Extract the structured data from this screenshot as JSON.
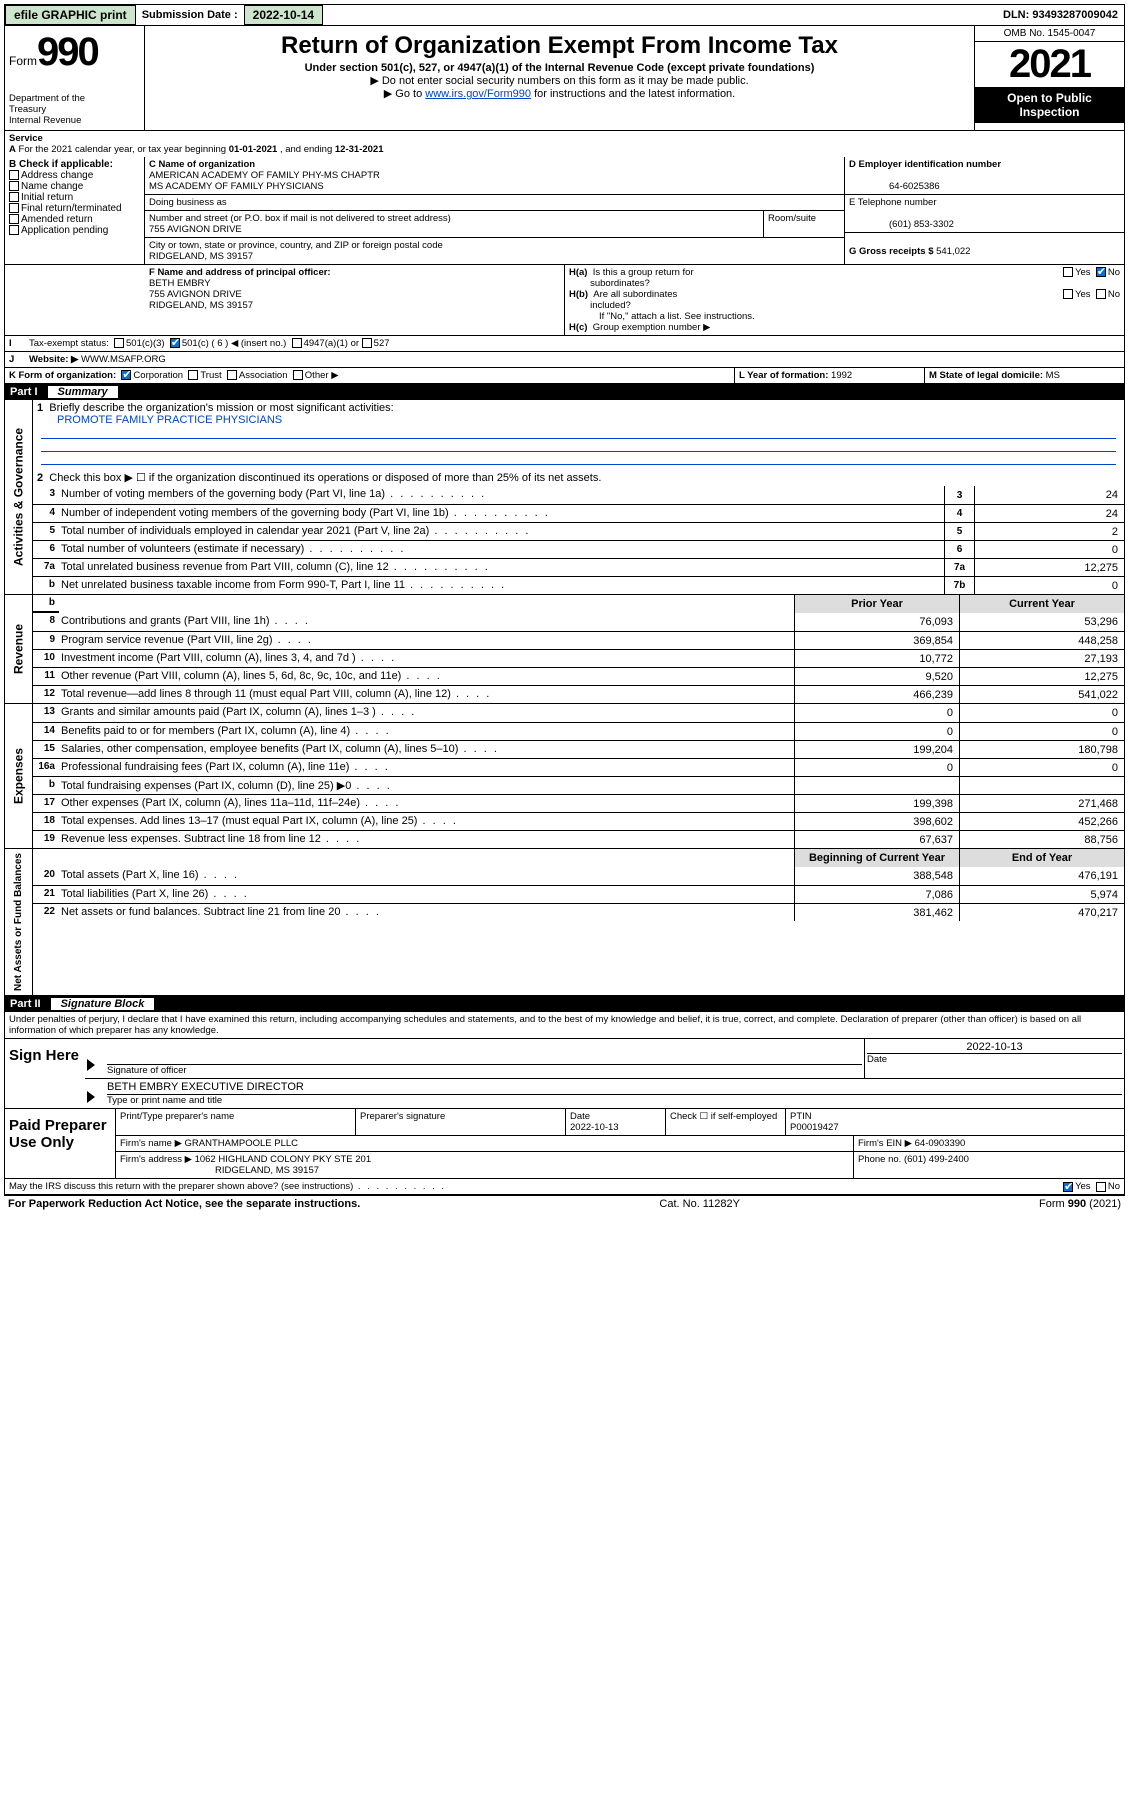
{
  "topbar": {
    "efile": "efile GRAPHIC print",
    "submission_label": "Submission Date :",
    "submission_date": "2022-10-14",
    "dln_label": "DLN:",
    "dln": "93493287009042"
  },
  "header": {
    "form_word": "Form",
    "form_num": "990",
    "title": "Return of Organization Exempt From Income Tax",
    "subtitle": "Under section 501(c), 527, or 4947(a)(1) of the Internal Revenue Code (except private foundations)",
    "line1": "▶ Do not enter social security numbers on this form as it may be made public.",
    "line2_pre": "▶ Go to ",
    "line2_link": "www.irs.gov/Form990",
    "line2_post": " for instructions and the latest information.",
    "dept": "Department of the Treasury\nInternal Revenue Service",
    "omb": "OMB No. 1545-0047",
    "year": "2021",
    "openpub": "Open to Public Inspection"
  },
  "a_line": {
    "prefix": "A",
    "text": "For the 2021 calendar year, or tax year beginning ",
    "begin": "01-01-2021",
    "mid": " , and ending ",
    "end": "12-31-2021"
  },
  "b": {
    "label": "B Check if applicable:",
    "items": [
      "Address change",
      "Name change",
      "Initial return",
      "Final return/terminated",
      "Amended return",
      "Application pending"
    ]
  },
  "c": {
    "name_label": "C Name of organization",
    "name1": "AMERICAN ACADEMY OF FAMILY PHY-MS CHAPTR",
    "name2": "MS ACADEMY OF FAMILY PHYSICIANS",
    "dba": "Doing business as",
    "street_label": "Number and street (or P.O. box if mail is not delivered to street address)",
    "room_label": "Room/suite",
    "street": "755 AVIGNON DRIVE",
    "city_label": "City or town, state or province, country, and ZIP or foreign postal code",
    "city": "RIDGELAND, MS  39157"
  },
  "d": {
    "label": "D Employer identification number",
    "value": "64-6025386"
  },
  "e": {
    "label": "E Telephone number",
    "value": "(601) 853-3302"
  },
  "g": {
    "label": "G Gross receipts $",
    "value": "541,022"
  },
  "f": {
    "label": "F Name and address of principal officer:",
    "name": "BETH EMBRY",
    "street": "755 AVIGNON DRIVE",
    "city": "RIDGELAND, MS  39157"
  },
  "h": {
    "a": "H(a)  Is this a group return for subordinates?",
    "b": "H(b)  Are all subordinates included?",
    "b_note": "If \"No,\" attach a list. See instructions.",
    "c": "H(c)  Group exemption number ▶",
    "yes": "Yes",
    "no": "No"
  },
  "i": {
    "label": "I",
    "text": "Tax-exempt status:",
    "o1": "501(c)(3)",
    "o2": "501(c) ( 6 ) ◀ (insert no.)",
    "o3": "4947(a)(1) or",
    "o4": "527"
  },
  "j": {
    "label": "J",
    "text": "Website: ▶",
    "value": "WWW.MSAFP.ORG"
  },
  "k": {
    "label": "K Form of organization:",
    "o1": "Corporation",
    "o2": "Trust",
    "o3": "Association",
    "o4": "Other ▶"
  },
  "l": {
    "label": "L Year of formation:",
    "value": "1992"
  },
  "m": {
    "label": "M State of legal domicile:",
    "value": "MS"
  },
  "part1": {
    "label": "Part I",
    "title": "Summary"
  },
  "summary": {
    "s1": {
      "briefly": "Briefly describe the organization's mission or most significant activities:",
      "mission": "PROMOTE FAMILY PRACTICE PHYSICIANS",
      "l2": "Check this box ▶ ☐  if the organization discontinued its operations or disposed of more than 25% of its net assets.",
      "rows": [
        {
          "n": "3",
          "d": "Number of voting members of the governing body (Part VI, line 1a)",
          "box": "3",
          "v": "24"
        },
        {
          "n": "4",
          "d": "Number of independent voting members of the governing body (Part VI, line 1b)",
          "box": "4",
          "v": "24"
        },
        {
          "n": "5",
          "d": "Total number of individuals employed in calendar year 2021 (Part V, line 2a)",
          "box": "5",
          "v": "2"
        },
        {
          "n": "6",
          "d": "Total number of volunteers (estimate if necessary)",
          "box": "6",
          "v": "0"
        },
        {
          "n": "7a",
          "d": "Total unrelated business revenue from Part VIII, column (C), line 12",
          "box": "7a",
          "v": "12,275"
        },
        {
          "n": "b",
          "d": "Net unrelated business taxable income from Form 990-T, Part I, line 11",
          "box": "7b",
          "v": "0"
        }
      ]
    },
    "hdr_prior": "Prior Year",
    "hdr_curr": "Current Year",
    "revenue": [
      {
        "n": "8",
        "d": "Contributions and grants (Part VIII, line 1h)",
        "p": "76,093",
        "c": "53,296"
      },
      {
        "n": "9",
        "d": "Program service revenue (Part VIII, line 2g)",
        "p": "369,854",
        "c": "448,258"
      },
      {
        "n": "10",
        "d": "Investment income (Part VIII, column (A), lines 3, 4, and 7d )",
        "p": "10,772",
        "c": "27,193"
      },
      {
        "n": "11",
        "d": "Other revenue (Part VIII, column (A), lines 5, 6d, 8c, 9c, 10c, and 11e)",
        "p": "9,520",
        "c": "12,275"
      },
      {
        "n": "12",
        "d": "Total revenue—add lines 8 through 11 (must equal Part VIII, column (A), line 12)",
        "p": "466,239",
        "c": "541,022"
      }
    ],
    "expenses": [
      {
        "n": "13",
        "d": "Grants and similar amounts paid (Part IX, column (A), lines 1–3 )",
        "p": "0",
        "c": "0"
      },
      {
        "n": "14",
        "d": "Benefits paid to or for members (Part IX, column (A), line 4)",
        "p": "0",
        "c": "0"
      },
      {
        "n": "15",
        "d": "Salaries, other compensation, employee benefits (Part IX, column (A), lines 5–10)",
        "p": "199,204",
        "c": "180,798"
      },
      {
        "n": "16a",
        "d": "Professional fundraising fees (Part IX, column (A), line 11e)",
        "p": "0",
        "c": "0"
      },
      {
        "n": "b",
        "d": "Total fundraising expenses (Part IX, column (D), line 25) ▶0",
        "p": "",
        "c": "",
        "grey": true
      },
      {
        "n": "17",
        "d": "Other expenses (Part IX, column (A), lines 11a–11d, 11f–24e)",
        "p": "199,398",
        "c": "271,468"
      },
      {
        "n": "18",
        "d": "Total expenses. Add lines 13–17 (must equal Part IX, column (A), line 25)",
        "p": "398,602",
        "c": "452,266"
      },
      {
        "n": "19",
        "d": "Revenue less expenses. Subtract line 18 from line 12",
        "p": "67,637",
        "c": "88,756"
      }
    ],
    "hdr_begin": "Beginning of Current Year",
    "hdr_end": "End of Year",
    "netassets": [
      {
        "n": "20",
        "d": "Total assets (Part X, line 16)",
        "p": "388,548",
        "c": "476,191"
      },
      {
        "n": "21",
        "d": "Total liabilities (Part X, line 26)",
        "p": "7,086",
        "c": "5,974"
      },
      {
        "n": "22",
        "d": "Net assets or fund balances. Subtract line 21 from line 20",
        "p": "381,462",
        "c": "470,217"
      }
    ],
    "side_gov": "Activities & Governance",
    "side_rev": "Revenue",
    "side_exp": "Expenses",
    "side_net": "Net Assets or Fund Balances"
  },
  "part2": {
    "label": "Part II",
    "title": "Signature Block"
  },
  "penalty": "Under penalties of perjury, I declare that I have examined this return, including accompanying schedules and statements, and to the best of my knowledge and belief, it is true, correct, and complete. Declaration of preparer (other than officer) is based on all information of which preparer has any knowledge.",
  "sign": {
    "here": "Sign Here",
    "sig_officer": "Signature of officer",
    "date": "Date",
    "date_val": "2022-10-13",
    "name": "BETH EMBRY EXECUTIVE DIRECTOR",
    "name_lbl": "Type or print name and title"
  },
  "paid": {
    "label": "Paid Preparer Use Only",
    "h1": "Print/Type preparer's name",
    "h2": "Preparer's signature",
    "h3": "Date",
    "date": "2022-10-13",
    "h4": "Check ☐ if self-employed",
    "h5": "PTIN",
    "ptin": "P00019427",
    "firm_name_lbl": "Firm's name    ▶",
    "firm_name": "GRANTHAMPOOLE PLLC",
    "firm_ein_lbl": "Firm's EIN ▶",
    "firm_ein": "64-0903390",
    "firm_addr_lbl": "Firm's address ▶",
    "firm_addr1": "1062 HIGHLAND COLONY PKY STE 201",
    "firm_addr2": "RIDGELAND, MS  39157",
    "phone_lbl": "Phone no.",
    "phone": "(601) 499-2400"
  },
  "discuss": {
    "text": "May the IRS discuss this return with the preparer shown above? (see instructions)",
    "yes": "Yes",
    "no": "No"
  },
  "footer": {
    "left": "For Paperwork Reduction Act Notice, see the separate instructions.",
    "mid": "Cat. No. 11282Y",
    "right_pre": "Form ",
    "right_bold": "990",
    "right_post": " (2021)"
  }
}
